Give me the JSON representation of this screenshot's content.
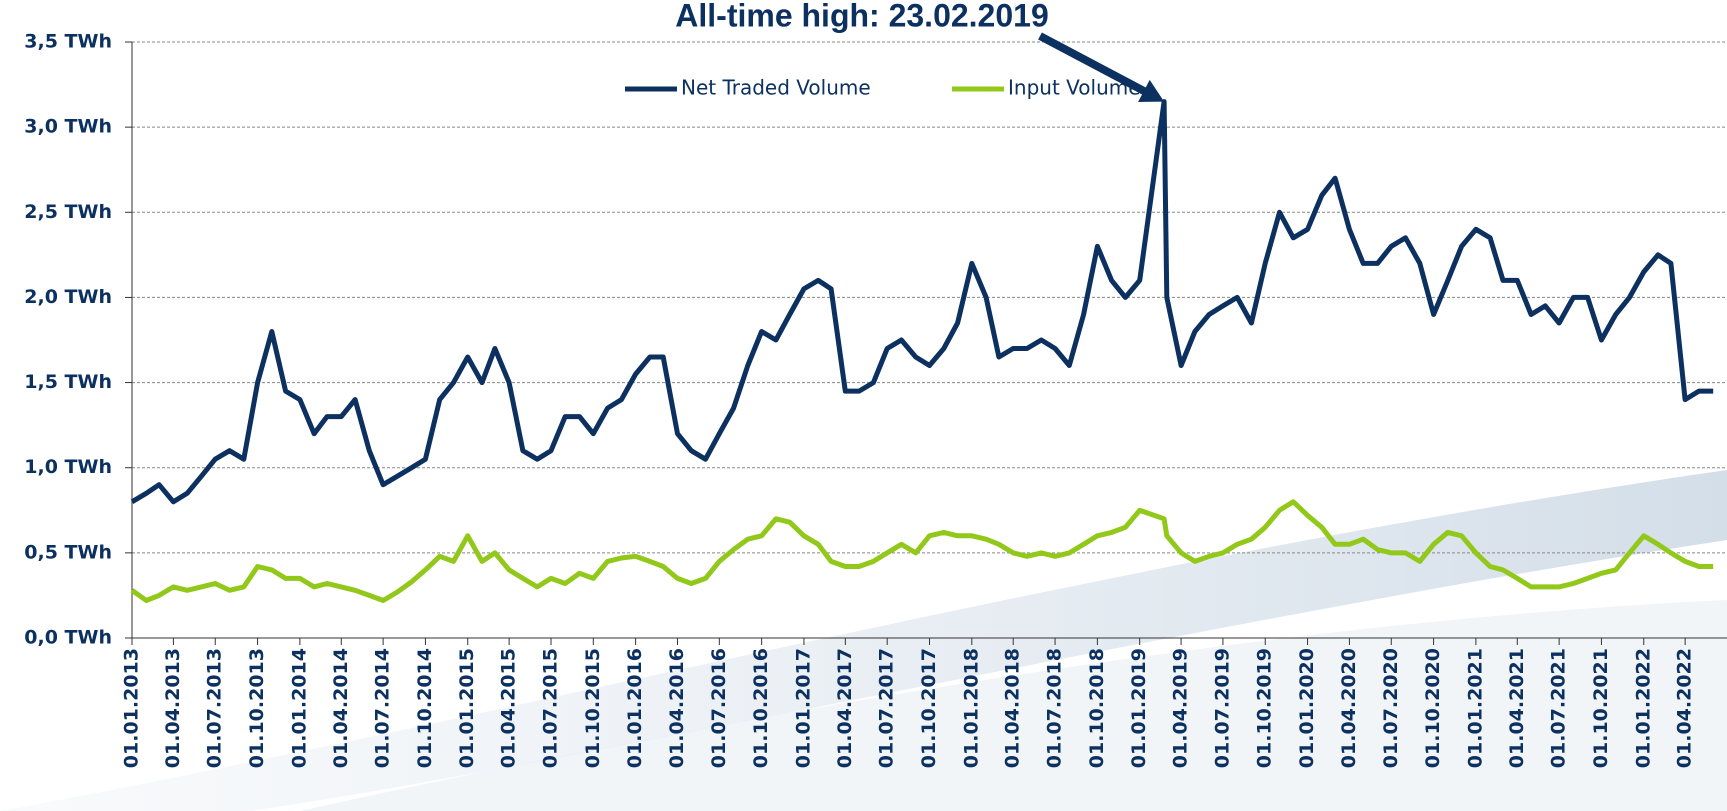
{
  "chart_data": {
    "type": "line",
    "annotation": "All-time high:  23.02.2019",
    "legend": "top",
    "grid": true,
    "x": [
      "01.01.2013",
      "01.02.2013",
      "01.03.2013",
      "01.04.2013",
      "01.05.2013",
      "01.06.2013",
      "01.07.2013",
      "01.08.2013",
      "01.09.2013",
      "01.10.2013",
      "01.11.2013",
      "01.12.2013",
      "01.01.2014",
      "01.02.2014",
      "01.03.2014",
      "01.04.2014",
      "01.05.2014",
      "01.06.2014",
      "01.07.2014",
      "01.08.2014",
      "01.09.2014",
      "01.10.2014",
      "01.11.2014",
      "01.12.2014",
      "01.01.2015",
      "01.02.2015",
      "01.03.2015",
      "01.04.2015",
      "01.05.2015",
      "01.06.2015",
      "01.07.2015",
      "01.08.2015",
      "01.09.2015",
      "01.10.2015",
      "01.11.2015",
      "01.12.2015",
      "01.01.2016",
      "01.02.2016",
      "01.03.2016",
      "01.04.2016",
      "01.05.2016",
      "01.06.2016",
      "01.07.2016",
      "01.08.2016",
      "01.09.2016",
      "01.10.2016",
      "01.11.2016",
      "01.12.2016",
      "01.01.2017",
      "01.02.2017",
      "01.03.2017",
      "01.04.2017",
      "01.05.2017",
      "01.06.2017",
      "01.07.2017",
      "01.08.2017",
      "01.09.2017",
      "01.10.2017",
      "01.11.2017",
      "01.12.2017",
      "01.01.2018",
      "01.02.2018",
      "01.03.2018",
      "01.04.2018",
      "01.05.2018",
      "01.06.2018",
      "01.07.2018",
      "01.08.2018",
      "01.09.2018",
      "01.10.2018",
      "01.11.2018",
      "01.12.2018",
      "01.01.2019",
      "23.02.2019",
      "01.03.2019",
      "01.04.2019",
      "01.05.2019",
      "01.06.2019",
      "01.07.2019",
      "01.08.2019",
      "01.09.2019",
      "01.10.2019",
      "01.11.2019",
      "01.12.2019",
      "01.01.2020",
      "01.02.2020",
      "01.03.2020",
      "01.04.2020",
      "01.05.2020",
      "01.06.2020",
      "01.07.2020",
      "01.08.2020",
      "01.09.2020",
      "01.10.2020",
      "01.11.2020",
      "01.12.2020",
      "01.01.2021",
      "01.02.2021",
      "01.03.2021",
      "01.04.2021",
      "01.05.2021",
      "01.06.2021",
      "01.07.2021",
      "01.08.2021",
      "01.09.2021",
      "01.10.2021",
      "01.11.2021",
      "01.12.2021",
      "01.01.2022",
      "01.02.2022",
      "01.03.2022",
      "01.04.2022",
      "01.05.2022",
      "01.06.2022"
    ],
    "series": [
      {
        "name": "Net Traded Volume",
        "color": "#0c3160",
        "values": [
          0.8,
          0.85,
          0.9,
          0.8,
          0.85,
          0.95,
          1.05,
          1.1,
          1.05,
          1.5,
          1.8,
          1.45,
          1.4,
          1.2,
          1.3,
          1.3,
          1.4,
          1.1,
          0.9,
          0.95,
          1.0,
          1.05,
          1.4,
          1.5,
          1.65,
          1.5,
          1.7,
          1.5,
          1.1,
          1.05,
          1.1,
          1.3,
          1.3,
          1.2,
          1.35,
          1.4,
          1.55,
          1.65,
          1.65,
          1.2,
          1.1,
          1.05,
          1.2,
          1.35,
          1.6,
          1.8,
          1.75,
          1.9,
          2.05,
          2.1,
          2.05,
          1.45,
          1.45,
          1.5,
          1.7,
          1.75,
          1.65,
          1.6,
          1.7,
          1.85,
          2.2,
          2.0,
          1.65,
          1.7,
          1.7,
          1.75,
          1.7,
          1.6,
          1.9,
          2.3,
          2.1,
          2.0,
          2.1,
          3.15,
          2.0,
          1.6,
          1.8,
          1.9,
          1.95,
          2.0,
          1.85,
          2.2,
          2.5,
          2.35,
          2.4,
          2.6,
          2.7,
          2.4,
          2.2,
          2.2,
          2.3,
          2.35,
          2.2,
          1.9,
          2.1,
          2.3,
          2.4,
          2.35,
          2.1,
          2.1,
          1.9,
          1.95,
          1.85,
          2.0,
          2.0,
          1.75,
          1.9,
          2.0,
          2.15,
          2.25,
          2.2,
          1.4,
          1.45,
          1.45
        ]
      },
      {
        "name": "Input Volume",
        "color": "#92c81a",
        "values": [
          0.28,
          0.22,
          0.25,
          0.3,
          0.28,
          0.3,
          0.32,
          0.28,
          0.3,
          0.42,
          0.4,
          0.35,
          0.35,
          0.3,
          0.32,
          0.3,
          0.28,
          0.25,
          0.22,
          0.27,
          0.33,
          0.4,
          0.48,
          0.45,
          0.6,
          0.45,
          0.5,
          0.4,
          0.35,
          0.3,
          0.35,
          0.32,
          0.38,
          0.35,
          0.45,
          0.47,
          0.48,
          0.45,
          0.42,
          0.35,
          0.32,
          0.35,
          0.45,
          0.52,
          0.58,
          0.6,
          0.7,
          0.68,
          0.6,
          0.55,
          0.45,
          0.42,
          0.42,
          0.45,
          0.5,
          0.55,
          0.5,
          0.6,
          0.62,
          0.6,
          0.6,
          0.58,
          0.55,
          0.5,
          0.48,
          0.5,
          0.48,
          0.5,
          0.55,
          0.6,
          0.62,
          0.65,
          0.75,
          0.7,
          0.6,
          0.5,
          0.45,
          0.48,
          0.5,
          0.55,
          0.58,
          0.65,
          0.75,
          0.8,
          0.72,
          0.65,
          0.55,
          0.55,
          0.58,
          0.52,
          0.5,
          0.5,
          0.45,
          0.55,
          0.62,
          0.6,
          0.5,
          0.42,
          0.4,
          0.35,
          0.3,
          0.3,
          0.3,
          0.32,
          0.35,
          0.38,
          0.4,
          0.5,
          0.6,
          0.55,
          0.5,
          0.45,
          0.42,
          0.42
        ]
      }
    ],
    "xlim": [
      "01.01.2013",
      "01.07.2022"
    ],
    "xticks": [
      "01.01.2013",
      "01.04.2013",
      "01.07.2013",
      "01.10.2013",
      "01.01.2014",
      "01.04.2014",
      "01.07.2014",
      "01.10.2014",
      "01.01.2015",
      "01.04.2015",
      "01.07.2015",
      "01.10.2015",
      "01.01.2016",
      "01.04.2016",
      "01.07.2016",
      "01.10.2016",
      "01.01.2017",
      "01.04.2017",
      "01.07.2017",
      "01.10.2017",
      "01.01.2018",
      "01.04.2018",
      "01.07.2018",
      "01.10.2018",
      "01.01.2019",
      "01.04.2019",
      "01.07.2019",
      "01.10.2019",
      "01.01.2020",
      "01.04.2020",
      "01.07.2020",
      "01.10.2020",
      "01.01.2021",
      "01.04.2021",
      "01.07.2021",
      "01.10.2021",
      "01.01.2022",
      "01.04.2022"
    ],
    "ylim": [
      0,
      3.5
    ],
    "yticks": [
      {
        "value": 0,
        "label": "0,0 TWh"
      },
      {
        "value": 0.5,
        "label": "0,5 TWh"
      },
      {
        "value": 1,
        "label": "1,0 TWh"
      },
      {
        "value": 1.5,
        "label": "1,5 TWh"
      },
      {
        "value": 2,
        "label": "2,0 TWh"
      },
      {
        "value": 2.5,
        "label": "2,5 TWh"
      },
      {
        "value": 3,
        "label": "3,0 TWh"
      },
      {
        "value": 3.5,
        "label": "3,5 TWh"
      }
    ]
  }
}
